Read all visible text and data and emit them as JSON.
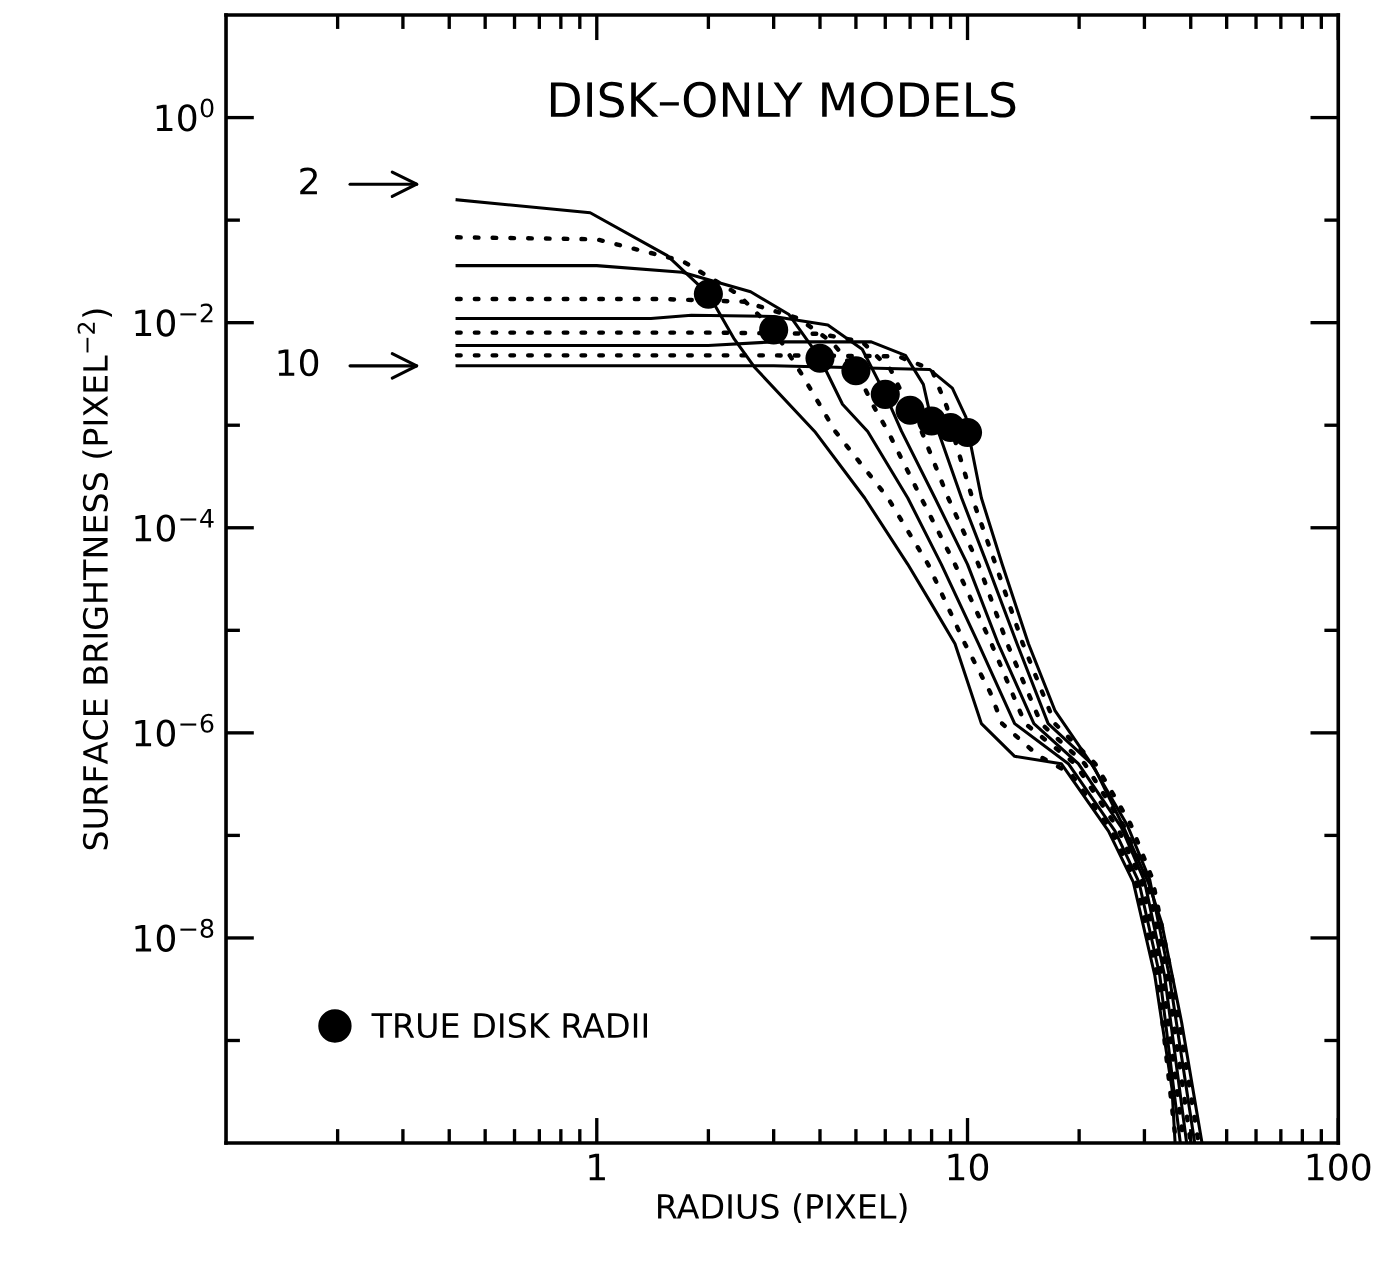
{
  "chart_data": {
    "type": "line",
    "title": "DISK–ONLY MODELS",
    "xlabel": "RADIUS (PIXEL)",
    "ylabel": "SURFACE BRIGHTNESS (PIXEL$^{−2}$)",
    "log": "xy",
    "grid": false,
    "legend": "bottom left",
    "marker": "none",
    "xlim": [
      0.1,
      100
    ],
    "ylim": [
      1e-10,
      10
    ],
    "xticks": [
      {
        "value": 0.2,
        "label": null
      },
      {
        "value": 0.3,
        "label": null
      },
      {
        "value": 0.4,
        "label": null
      },
      {
        "value": 0.5,
        "label": null
      },
      {
        "value": 0.6,
        "label": null
      },
      {
        "value": 0.7,
        "label": null
      },
      {
        "value": 0.8,
        "label": null
      },
      {
        "value": 0.9,
        "label": null
      },
      1,
      {
        "value": 2,
        "label": null
      },
      {
        "value": 3,
        "label": null
      },
      {
        "value": 4,
        "label": null
      },
      {
        "value": 5,
        "label": null
      },
      {
        "value": 6,
        "label": null
      },
      {
        "value": 7,
        "label": null
      },
      {
        "value": 8,
        "label": null
      },
      {
        "value": 9,
        "label": null
      },
      10,
      {
        "value": 20,
        "label": null
      },
      {
        "value": 30,
        "label": null
      },
      {
        "value": 40,
        "label": null
      },
      {
        "value": 50,
        "label": null
      },
      {
        "value": 60,
        "label": null
      },
      {
        "value": 70,
        "label": null
      },
      {
        "value": 80,
        "label": null
      },
      {
        "value": 90,
        "label": null
      },
      100
    ],
    "yticks": [
      {
        "value": 1e-09,
        "label": null
      },
      {
        "value": 1e-08,
        "label": "10$^{−8}$"
      },
      {
        "value": 1e-07,
        "label": null
      },
      {
        "value": 1e-06,
        "label": "10$^{−6}$"
      },
      {
        "value": 1e-05,
        "label": null
      },
      {
        "value": 0.0001,
        "label": "10$^{−4}$"
      },
      {
        "value": 0.001,
        "label": null
      },
      {
        "value": 0.01,
        "label": "10$^{−2}$"
      },
      {
        "value": 0.1,
        "label": null
      },
      {
        "value": 1,
        "label": "10$^{0}$"
      }
    ],
    "annotations": [
      "2",
      "10"
    ],
    "series": [
      {
        "color": "#000000",
        "line_style": "solid",
        "x": [
          0.42,
          0.96,
          1.55,
          2.0,
          2.35,
          2.66,
          3.87,
          5.28,
          6.9,
          8.0,
          9.25,
          10.9,
          13.4,
          17.9,
          24,
          28,
          32,
          35.6,
          36.3
        ],
        "values": [
          0.158,
          0.118,
          0.045,
          0.019,
          0.0069,
          0.0037,
          0.00087,
          0.000195,
          4.4e-05,
          1.8e-05,
          7.4e-06,
          1.23e-06,
          5.9e-07,
          5e-07,
          1.1e-07,
          3.5e-08,
          4.3e-09,
          3.4e-10,
          1e-10
        ]
      },
      {
        "color": "#000000",
        "line_style": "dotted",
        "x": [
          0.42,
          1.0,
          1.7,
          2.4,
          3.0,
          3.6,
          4.4,
          6.1,
          7.83,
          9.84,
          11.5,
          12.4,
          15.5,
          19,
          24.5,
          28.5,
          32.5,
          36.5
        ],
        "values": [
          0.068,
          0.065,
          0.04,
          0.019,
          0.0085,
          0.003,
          0.00087,
          0.000195,
          4.4e-05,
          7.4e-06,
          2.5e-06,
          1.23e-06,
          6e-07,
          4e-07,
          1.1e-07,
          3.5e-08,
          4.3e-09,
          1e-10
        ]
      },
      {
        "color": "#000000",
        "line_style": "solid",
        "x": [
          0.42,
          1.0,
          1.7,
          2.6,
          3.3,
          4.0,
          4.6,
          5.38,
          6.9,
          8.5,
          10.7,
          13.4,
          18.7,
          25,
          29,
          33,
          37.5
        ],
        "values": [
          0.036,
          0.036,
          0.031,
          0.02,
          0.012,
          0.0045,
          0.0016,
          0.00087,
          0.000195,
          4.4e-05,
          7.4e-06,
          1.23e-06,
          5e-07,
          1.1e-07,
          3.5e-08,
          4.3e-09,
          1e-10
        ]
      },
      {
        "color": "#000000",
        "line_style": "dotted",
        "x": [
          0.42,
          1.5,
          2.5,
          3.5,
          4.3,
          5.0,
          5.6,
          6.1,
          7.5,
          9.25,
          11.6,
          14.3,
          19.5,
          25.5,
          29.5,
          33.5,
          38.3
        ],
        "values": [
          0.017,
          0.017,
          0.016,
          0.011,
          0.0065,
          0.0034,
          0.0015,
          0.00087,
          0.000195,
          4.4e-05,
          7.4e-06,
          1.23e-06,
          5e-07,
          1.15e-07,
          3.6e-08,
          4.3e-09,
          1e-10
        ]
      },
      {
        "color": "#000000",
        "line_style": "solid",
        "x": [
          0.42,
          1.4,
          1.8,
          3.0,
          4.2,
          5.2,
          6.0,
          6.64,
          8.17,
          10.0,
          12.1,
          15.1,
          19.9,
          26,
          30,
          34,
          39
        ],
        "values": [
          0.011,
          0.011,
          0.0118,
          0.0115,
          0.0095,
          0.0055,
          0.002,
          0.00087,
          0.000195,
          4.4e-05,
          7.4e-06,
          1.23e-06,
          5e-07,
          1.2e-07,
          3.6e-08,
          4.3e-09,
          1e-10
        ]
      },
      {
        "color": "#000000",
        "line_style": "dotted",
        "x": [
          0.42,
          2,
          4,
          5.2,
          6.2,
          7.0,
          7.52,
          8.87,
          10.7,
          12.8,
          15.8,
          20.7,
          26.5,
          30.5,
          34.5,
          40
        ],
        "values": [
          0.008,
          0.008,
          0.0078,
          0.0065,
          0.0035,
          0.0014,
          0.00087,
          0.000195,
          4.4e-05,
          7.4e-06,
          1.23e-06,
          5e-07,
          1.2e-07,
          3.6e-08,
          4.3e-09,
          1e-10
        ]
      },
      {
        "color": "#000000",
        "line_style": "solid",
        "x": [
          0.42,
          2,
          3,
          5.5,
          6.8,
          7.6,
          8.0,
          8.34,
          9.64,
          11.3,
          13.6,
          16.5,
          21.6,
          27,
          31,
          35,
          41
        ],
        "values": [
          0.006,
          0.006,
          0.0065,
          0.0065,
          0.0048,
          0.0025,
          0.0011,
          0.00087,
          0.000195,
          4.4e-05,
          7.4e-06,
          1.23e-06,
          5e-07,
          1.25e-07,
          3.7e-08,
          4.3e-09,
          1e-10
        ]
      },
      {
        "color": "#000000",
        "line_style": "dotted",
        "x": [
          0.42,
          3,
          6.5,
          8.0,
          8.8,
          9.1,
          10.3,
          11.9,
          14.1,
          17.2,
          22.1,
          27.5,
          31.5,
          35.5,
          42
        ],
        "values": [
          0.0048,
          0.0048,
          0.0047,
          0.0035,
          0.0015,
          0.00087,
          0.000195,
          4.4e-05,
          7.4e-06,
          1.23e-06,
          5e-07,
          1.3e-07,
          3.8e-08,
          4.3e-09,
          1e-10
        ]
      },
      {
        "color": "#000000",
        "line_style": "solid",
        "x": [
          0.42,
          3,
          7.9,
          9.1,
          9.9,
          10.05,
          10.9,
          12.4,
          14.6,
          17.2,
          22.1,
          26.1,
          30.8,
          33.4,
          37.8,
          42.9
        ],
        "values": [
          0.0038,
          0.0038,
          0.0035,
          0.0023,
          0.0012,
          0.00085,
          0.000195,
          4.4e-05,
          7.4e-06,
          1.66e-06,
          4.4e-07,
          1.3e-07,
          3.4e-08,
          1.4e-08,
          1.5e-09,
          1e-10
        ]
      },
      {
        "type": "scatter",
        "name": "TRUE DISK RADII",
        "color": "#000000",
        "marker": "circle",
        "x": [
          2,
          3,
          4,
          5,
          6,
          7,
          8,
          9,
          10
        ],
        "values": [
          0.019,
          0.0085,
          0.0045,
          0.0034,
          0.002,
          0.0014,
          0.0011,
          0.00095,
          0.00085
        ]
      }
    ]
  }
}
